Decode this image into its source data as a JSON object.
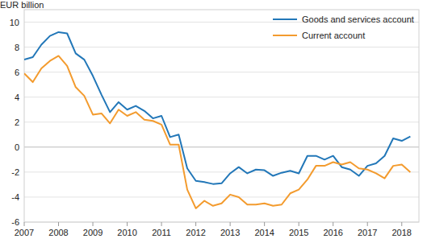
{
  "chart_data": {
    "type": "line",
    "y_label": "EUR billion",
    "x": [
      2007,
      2007.25,
      2007.5,
      2007.75,
      2008,
      2008.25,
      2008.5,
      2008.75,
      2009,
      2009.25,
      2009.5,
      2009.75,
      2010,
      2010.25,
      2010.5,
      2010.75,
      2011,
      2011.25,
      2011.5,
      2011.75,
      2012,
      2012.25,
      2012.5,
      2012.75,
      2013,
      2013.25,
      2013.5,
      2013.75,
      2014,
      2014.25,
      2014.5,
      2014.75,
      2015,
      2015.25,
      2015.5,
      2015.75,
      2016,
      2016.25,
      2016.5,
      2016.75,
      2017,
      2017.25,
      2017.5,
      2017.75,
      2018,
      2018.25
    ],
    "series": [
      {
        "name": "Goods and services account",
        "color": "#2277b8",
        "values": [
          7.0,
          7.2,
          8.2,
          8.9,
          9.2,
          9.1,
          7.5,
          7.0,
          5.7,
          4.2,
          2.8,
          3.6,
          3.0,
          3.3,
          2.9,
          2.3,
          2.5,
          0.8,
          1.0,
          -1.7,
          -2.7,
          -2.8,
          -2.95,
          -2.9,
          -2.1,
          -1.6,
          -2.1,
          -1.8,
          -1.85,
          -2.3,
          -2.05,
          -1.9,
          -2.1,
          -0.7,
          -0.7,
          -1.0,
          -0.7,
          -1.6,
          -1.8,
          -2.3,
          -1.5,
          -1.3,
          -0.7,
          0.7,
          0.5,
          0.85
        ]
      },
      {
        "name": "Current account",
        "color": "#f39b2e",
        "values": [
          5.9,
          5.2,
          6.3,
          6.9,
          7.3,
          6.5,
          4.8,
          4.1,
          2.6,
          2.7,
          1.9,
          3.0,
          2.5,
          2.8,
          2.2,
          2.1,
          1.8,
          0.2,
          0.2,
          -3.4,
          -4.9,
          -4.3,
          -4.7,
          -4.5,
          -3.8,
          -4.0,
          -4.6,
          -4.6,
          -4.5,
          -4.7,
          -4.6,
          -3.7,
          -3.4,
          -2.6,
          -1.5,
          -1.5,
          -1.2,
          -1.4,
          -1.2,
          -1.7,
          -1.8,
          -2.1,
          -2.5,
          -1.5,
          -1.4,
          -2.0
        ]
      }
    ],
    "xlim": [
      2007,
      2018.5
    ],
    "xticks": [
      2007,
      2008,
      2009,
      2010,
      2011,
      2012,
      2013,
      2014,
      2015,
      2016,
      2017,
      2018
    ],
    "ylim": [
      -6,
      11
    ],
    "yticks": [
      -6,
      -4,
      -2,
      0,
      2,
      4,
      6,
      8,
      10
    ],
    "grid": true,
    "legend": "top-right"
  }
}
